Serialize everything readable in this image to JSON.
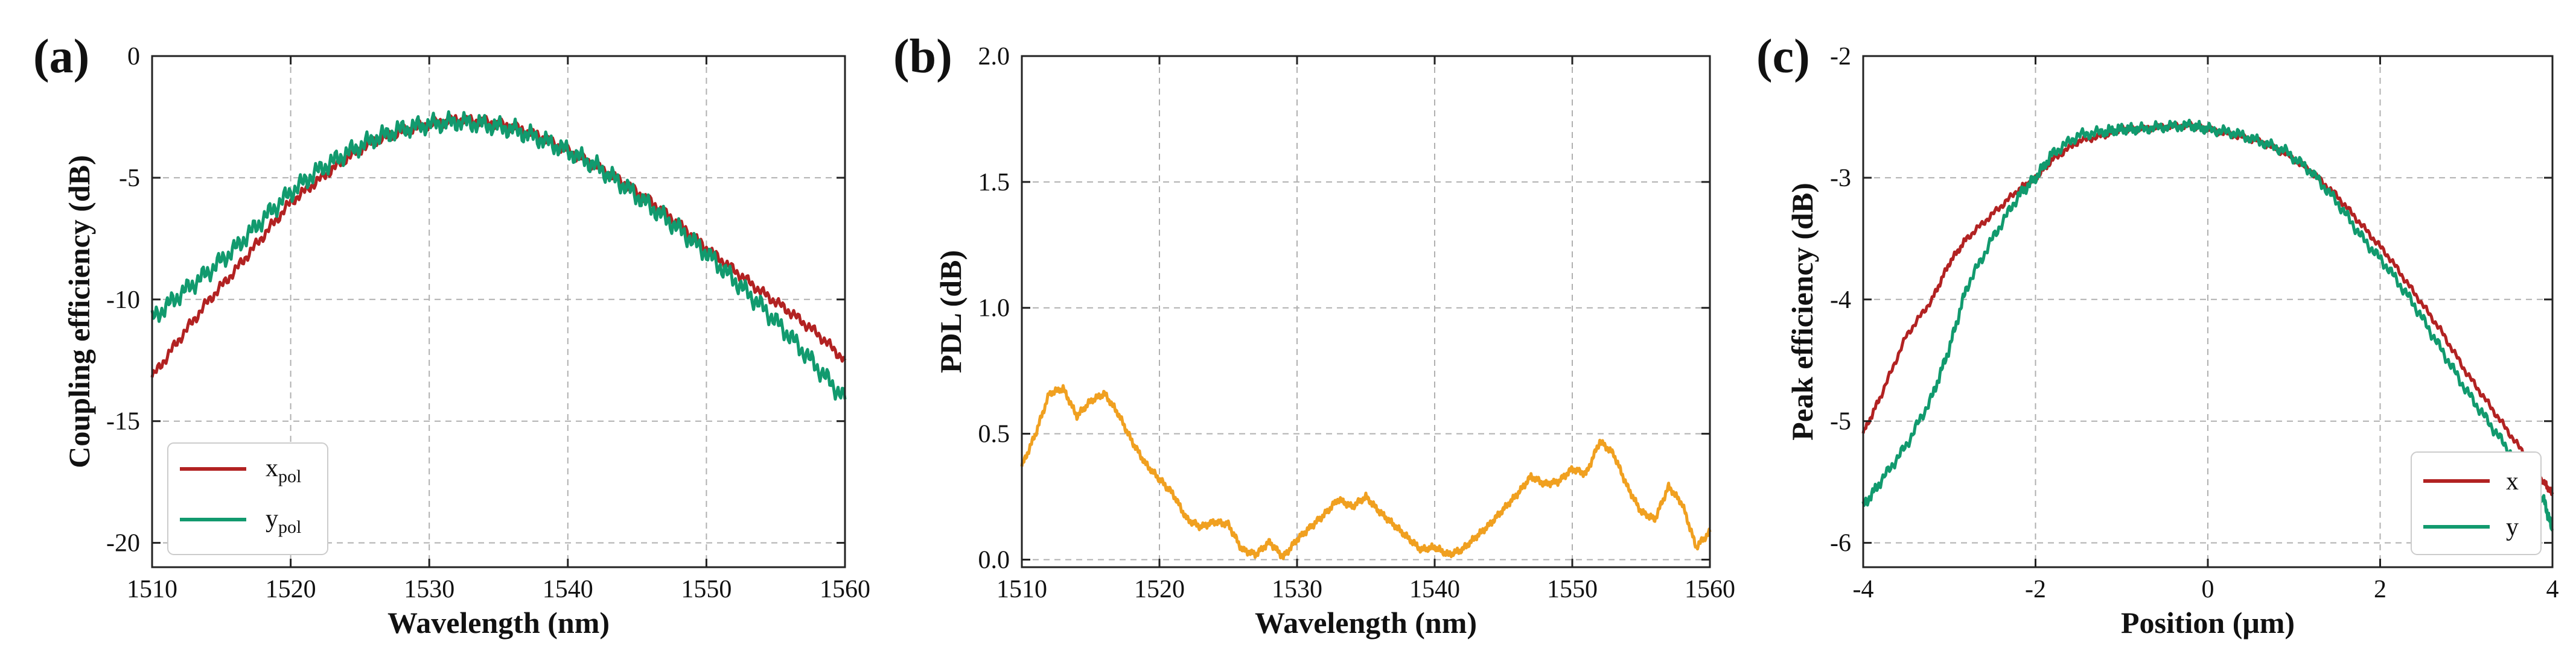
{
  "chart_data": [
    {
      "panel_label": "(a)",
      "type": "line",
      "xlabel": "Wavelength (nm)",
      "ylabel": "Coupling efficiency (dB)",
      "xlim": [
        1510,
        1560
      ],
      "ylim": [
        -21,
        0
      ],
      "xticks": [
        1510,
        1520,
        1530,
        1540,
        1550,
        1560
      ],
      "yticks": [
        0,
        -5,
        -10,
        -15,
        -20
      ],
      "grid": true,
      "legend_position": "bottom-left",
      "legend_entries": [
        {
          "base": "x",
          "sub": "pol"
        },
        {
          "base": "y",
          "sub": "pol"
        }
      ],
      "series": [
        {
          "name": "xpol",
          "color": "#b22222",
          "ripple": 0.25,
          "x": [
            1510,
            1512,
            1514,
            1516,
            1518,
            1520,
            1522,
            1524,
            1526,
            1528,
            1530,
            1532,
            1534,
            1536,
            1538,
            1540,
            1542,
            1544,
            1546,
            1548,
            1550,
            1552,
            1554,
            1556,
            1558,
            1560
          ],
          "y": [
            -13.2,
            -11.6,
            -10.1,
            -8.8,
            -7.4,
            -6.0,
            -5.1,
            -4.2,
            -3.5,
            -3.1,
            -2.8,
            -2.6,
            -2.7,
            -2.9,
            -3.3,
            -3.9,
            -4.5,
            -5.2,
            -6.0,
            -6.9,
            -7.9,
            -8.8,
            -9.7,
            -10.5,
            -11.4,
            -12.5
          ]
        },
        {
          "name": "ypol",
          "color": "#119a6e",
          "ripple": 0.45,
          "x": [
            1510,
            1512,
            1514,
            1516,
            1518,
            1520,
            1522,
            1524,
            1526,
            1528,
            1530,
            1532,
            1534,
            1536,
            1538,
            1540,
            1542,
            1544,
            1546,
            1548,
            1550,
            1552,
            1554,
            1556,
            1558,
            1560
          ],
          "y": [
            -10.8,
            -9.8,
            -8.9,
            -7.9,
            -6.7,
            -5.6,
            -4.7,
            -4.0,
            -3.4,
            -3.0,
            -2.8,
            -2.7,
            -2.8,
            -3.0,
            -3.4,
            -3.9,
            -4.5,
            -5.3,
            -6.2,
            -7.1,
            -8.1,
            -9.2,
            -10.3,
            -11.5,
            -12.8,
            -14.1
          ]
        }
      ]
    },
    {
      "panel_label": "(b)",
      "type": "line",
      "xlabel": "Wavelength (nm)",
      "ylabel": "PDL (dB)",
      "xlim": [
        1510,
        1560
      ],
      "ylim": [
        -0.03,
        2.0
      ],
      "xticks": [
        1510,
        1520,
        1530,
        1540,
        1550,
        1560
      ],
      "yticks": [
        0.0,
        0.5,
        1.0,
        1.5,
        2.0
      ],
      "ytick_labels": [
        "0.0",
        "0.5",
        "1.0",
        "1.5",
        "2.0"
      ],
      "grid": true,
      "series": [
        {
          "name": "PDL",
          "color": "#f0a020",
          "ripple": 0.015,
          "x": [
            1510,
            1511,
            1512,
            1513,
            1514,
            1515,
            1516,
            1517,
            1518,
            1519,
            1520,
            1521,
            1522,
            1523,
            1524,
            1525,
            1526,
            1527,
            1528,
            1529,
            1530,
            1531,
            1532,
            1533,
            1534,
            1535,
            1536,
            1537,
            1538,
            1539,
            1540,
            1541,
            1542,
            1543,
            1544,
            1545,
            1546,
            1547,
            1548,
            1549,
            1550,
            1551,
            1552,
            1553,
            1554,
            1555,
            1556,
            1557,
            1558,
            1559,
            1560
          ],
          "y": [
            0.37,
            0.5,
            0.66,
            0.68,
            0.57,
            0.63,
            0.66,
            0.58,
            0.47,
            0.38,
            0.32,
            0.26,
            0.16,
            0.13,
            0.15,
            0.14,
            0.04,
            0.02,
            0.07,
            0.01,
            0.08,
            0.13,
            0.18,
            0.24,
            0.21,
            0.25,
            0.19,
            0.14,
            0.09,
            0.04,
            0.05,
            0.02,
            0.04,
            0.09,
            0.14,
            0.2,
            0.26,
            0.33,
            0.3,
            0.31,
            0.36,
            0.34,
            0.47,
            0.42,
            0.29,
            0.19,
            0.16,
            0.29,
            0.22,
            0.05,
            0.11
          ]
        }
      ]
    },
    {
      "panel_label": "(c)",
      "type": "line",
      "xlabel": "Position (μm)",
      "ylabel": "Peak efficiency (dB)",
      "xlim": [
        -4,
        4
      ],
      "ylim": [
        -6.2,
        -2.0
      ],
      "xticks": [
        -4,
        -2,
        0,
        2,
        4
      ],
      "yticks": [
        -2,
        -3,
        -4,
        -5,
        -6
      ],
      "grid": true,
      "legend_position": "bottom-right",
      "legend_entries": [
        {
          "base": "x",
          "sub": ""
        },
        {
          "base": "y",
          "sub": ""
        }
      ],
      "series": [
        {
          "name": "x",
          "color": "#b22222",
          "ripple": 0.03,
          "x": [
            -4.0,
            -3.8,
            -3.5,
            -3.2,
            -3.0,
            -2.8,
            -2.5,
            -2.2,
            -2.0,
            -1.8,
            -1.5,
            -1.2,
            -1.0,
            -0.8,
            -0.5,
            -0.2,
            0.0,
            0.3,
            0.6,
            0.9,
            1.2,
            1.5,
            1.8,
            2.1,
            2.4,
            2.7,
            3.0,
            3.3,
            3.6,
            3.9,
            4.0
          ],
          "y": [
            -5.1,
            -4.8,
            -4.3,
            -4.0,
            -3.7,
            -3.5,
            -3.3,
            -3.1,
            -3.0,
            -2.85,
            -2.7,
            -2.65,
            -2.6,
            -2.6,
            -2.58,
            -2.57,
            -2.6,
            -2.65,
            -2.7,
            -2.8,
            -2.95,
            -3.15,
            -3.4,
            -3.65,
            -3.95,
            -4.25,
            -4.6,
            -4.9,
            -5.2,
            -5.5,
            -5.6
          ]
        },
        {
          "name": "y",
          "color": "#119a6e",
          "ripple": 0.05,
          "x": [
            -4.0,
            -3.8,
            -3.5,
            -3.2,
            -3.0,
            -2.8,
            -2.5,
            -2.2,
            -2.0,
            -1.8,
            -1.5,
            -1.2,
            -1.0,
            -0.8,
            -0.5,
            -0.2,
            0.0,
            0.3,
            0.6,
            0.9,
            1.2,
            1.5,
            1.8,
            2.1,
            2.4,
            2.7,
            3.0,
            3.3,
            3.6,
            3.9,
            4.0
          ],
          "y": [
            -5.7,
            -5.5,
            -5.2,
            -4.8,
            -4.4,
            -3.9,
            -3.5,
            -3.15,
            -3.0,
            -2.8,
            -2.65,
            -2.62,
            -2.6,
            -2.6,
            -2.58,
            -2.57,
            -2.6,
            -2.63,
            -2.7,
            -2.78,
            -2.95,
            -3.2,
            -3.5,
            -3.75,
            -4.05,
            -4.4,
            -4.75,
            -5.05,
            -5.35,
            -5.65,
            -5.9
          ]
        }
      ]
    }
  ]
}
